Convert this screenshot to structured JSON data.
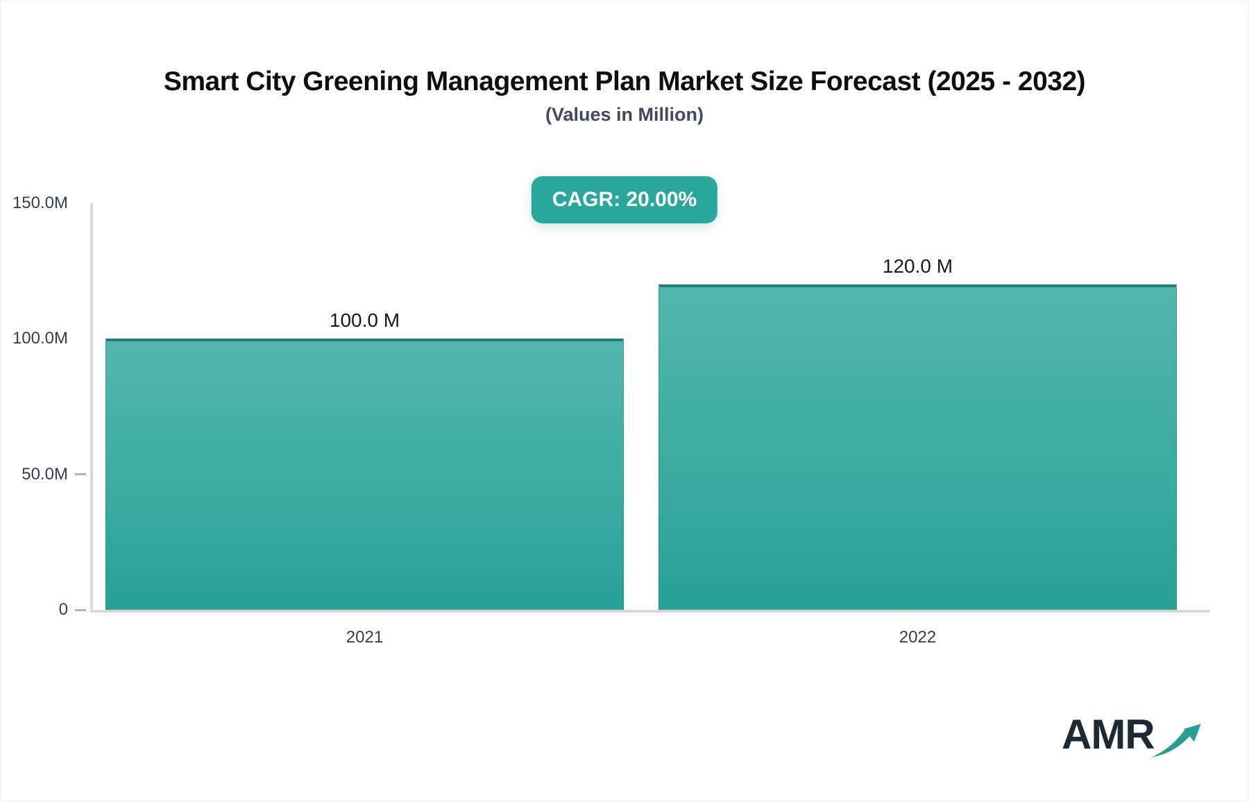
{
  "header": {
    "title": "Smart City Greening Management Plan Market Size Forecast (2025 - 2032)",
    "subtitle": "(Values in Million)",
    "cagr_badge": "CAGR: 20.00%"
  },
  "chart_data": {
    "type": "bar",
    "title": "Smart City Greening Management Plan Market Size Forecast (2025 - 2032)",
    "subtitle": "(Values in Million)",
    "unit": "Million",
    "cagr_percent": 20.0,
    "categories": [
      "2021",
      "2022"
    ],
    "values": [
      100.0,
      120.0
    ],
    "value_labels": [
      "100.0 M",
      "120.0 M"
    ],
    "ylim": [
      0,
      150
    ],
    "yticks": [
      {
        "label": "150.0M",
        "value": 150,
        "dash": false
      },
      {
        "label": "100.0M",
        "value": 100,
        "dash": false
      },
      {
        "label": "50.0M",
        "value": 50,
        "dash": true
      },
      {
        "label": "0",
        "value": 0,
        "dash": true
      }
    ],
    "grid": false,
    "legend": "none"
  },
  "colors": {
    "accent_teal": "#2aa79d",
    "bar_gradient_top": "#53b6ad",
    "bar_gradient_bottom": "#28a197",
    "bar_top_border": "#217e76",
    "axis_line": "#d8dadc",
    "title_text": "#0c0f12",
    "subtitle_text": "#3f4a5a",
    "tick_text": "#333f50",
    "logo_text_color": "#1b2a33"
  },
  "logo": {
    "text": "AMR"
  }
}
